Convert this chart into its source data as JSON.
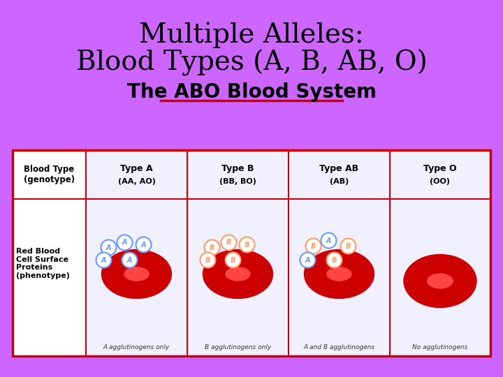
{
  "title_line1": "Multiple Alleles:",
  "title_line2": "Blood Types (A, B, AB, O)",
  "title_fontsize": 28,
  "title_color": "#000000",
  "bg_color": "#CC66FF",
  "table_bg": "#FFFFFF",
  "table_header_bg": "#FFFFFF",
  "subtitle": "The ABO Blood System",
  "subtitle_fontsize": 20,
  "subtitle_color": "#000000",
  "subtitle_underline_color": "#CC0000",
  "col_headers": [
    "Blood Type\n(genotype)",
    "Type A\n(AA, AO)",
    "Type B\n(BB, BO)",
    "Type AB\n(AB)",
    "Type O\n(OO)"
  ],
  "row1_label": "Red Blood\nCell Surface\nProteins\n(phenotype)",
  "row2_labels": [
    "A agglutinogens only",
    "B agglutinogens only",
    "A and B agglutinogens",
    "No agglutinogens"
  ],
  "table_border_color": "#CC0000",
  "header_text_color": "#000000",
  "cell_bg_light": "#E8E8FF",
  "cell_bg_white": "#FFFFFF",
  "rbc_color_dark": "#CC0000",
  "rbc_color_light": "#FF6666",
  "protein_a_color": "#6699FF",
  "protein_b_color": "#FF9966",
  "protein_ab_color_a": "#6699FF",
  "protein_ab_color_b": "#FF9966"
}
